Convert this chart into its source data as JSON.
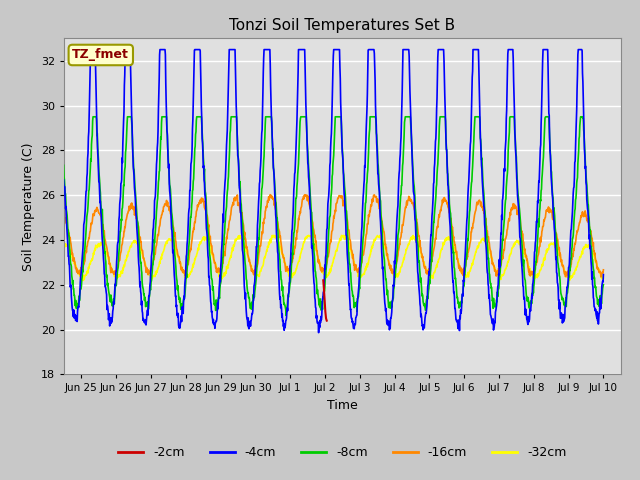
{
  "title": "Tonzi Soil Temperatures Set B",
  "xlabel": "Time",
  "ylabel": "Soil Temperature (C)",
  "ylim": [
    18,
    33
  ],
  "yticks": [
    18,
    20,
    22,
    24,
    26,
    28,
    30,
    32
  ],
  "fig_bg": "#c8c8c8",
  "plot_bg": "#e0e0e0",
  "grid_color": "#ffffff",
  "colors": {
    "-2cm": "#cc0000",
    "-4cm": "#0000ff",
    "-8cm": "#00cc00",
    "-16cm": "#ff8800",
    "-32cm": "#ffff00"
  },
  "legend_label": "TZ_fmet",
  "legend_bg": "#ffffcc",
  "legend_border": "#999900",
  "tick_labels": [
    "Jun 25",
    "Jun 26",
    "Jun 27",
    "Jun 28",
    "Jun 29",
    "Jun 30",
    "Jul 1",
    "Jul 2",
    "Jul 3",
    "Jul 4",
    "Jul 5",
    "Jul 6",
    "Jul 7",
    "Jul 8",
    "Jul 9",
    "Jul 10"
  ],
  "tick_positions": [
    1,
    2,
    3,
    4,
    5,
    6,
    7,
    8,
    9,
    10,
    11,
    12,
    13,
    14,
    15,
    16
  ]
}
